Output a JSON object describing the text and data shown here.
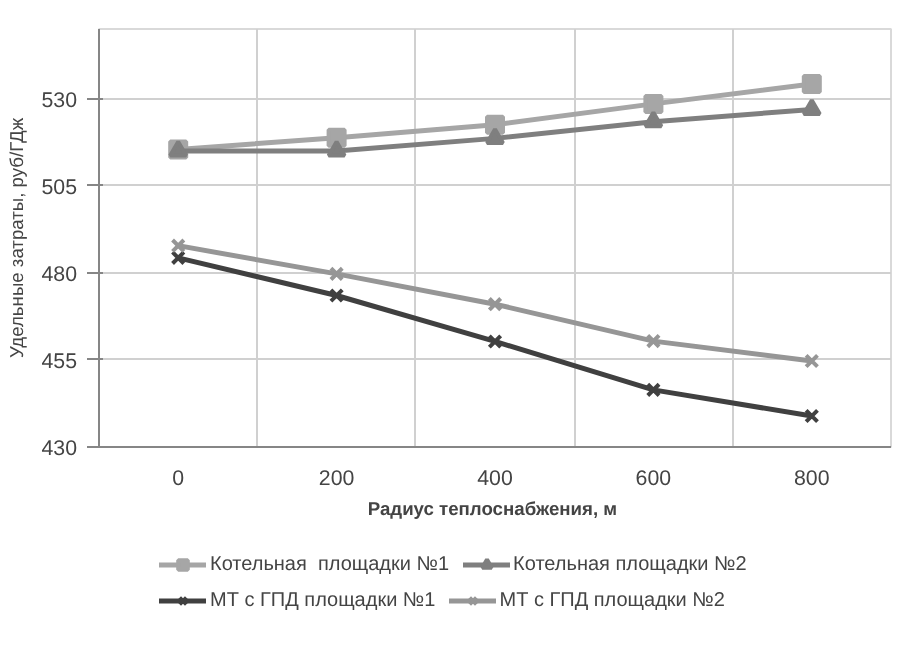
{
  "chart_data": {
    "type": "line",
    "xlabel": "Радиус  теплоснабжения, м",
    "ylabel": "Удельные затраты, руб/ГДж",
    "categories": [
      "0",
      "200",
      "400",
      "600",
      "800"
    ],
    "series": [
      {
        "name": "Котельная  площадки №1",
        "color": "#a6a6a6",
        "marker": "square",
        "values": [
          515.4,
          518.8,
          522.5,
          528.5,
          534.2
        ]
      },
      {
        "name": "Котельная площадки №2",
        "color": "#7f7f7f",
        "marker": "triangle",
        "values": [
          515,
          515,
          518.6,
          523.4,
          526.9
        ]
      },
      {
        "name": "МТ с ГПД площадки №1",
        "color": "#404040",
        "marker": "cross",
        "values": [
          484.3,
          473.5,
          460.3,
          446.4,
          438.9
        ]
      },
      {
        "name": "МТ с ГПД площадки №2",
        "color": "#969696",
        "marker": "cross",
        "values": [
          487.8,
          479.7,
          471,
          460.4,
          454.7
        ]
      }
    ],
    "ylim": [
      430,
      550
    ],
    "yticks": [
      430,
      455,
      480,
      505,
      530
    ],
    "grid": true,
    "legend": "bottom",
    "line_style": "solid"
  }
}
